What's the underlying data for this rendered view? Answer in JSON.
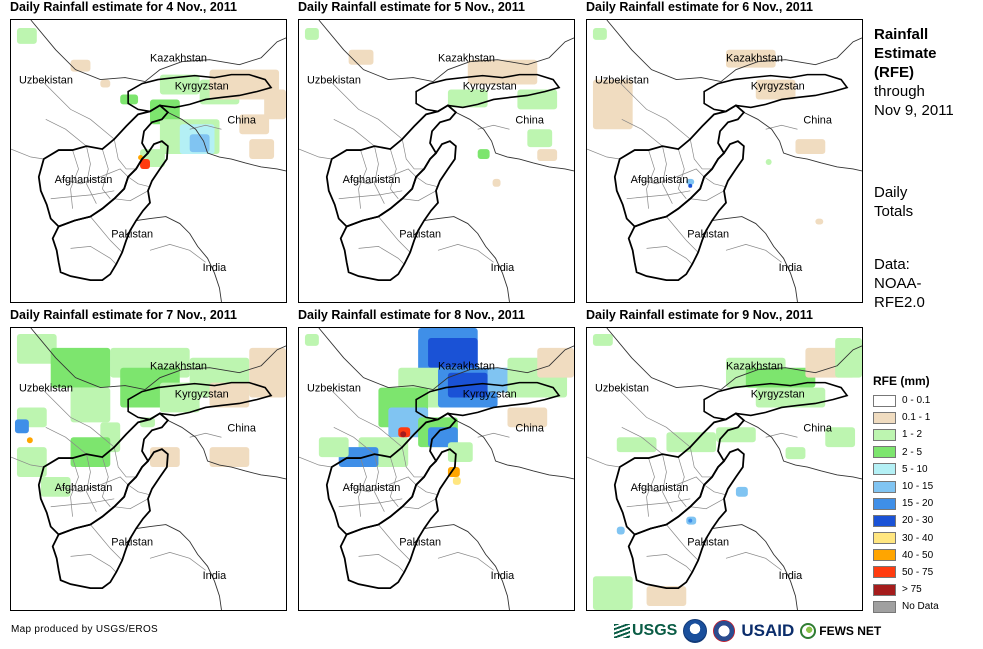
{
  "panels": [
    {
      "title": "Daily Rainfall estimate for 4 Nov., 2011"
    },
    {
      "title": "Daily Rainfall estimate for 5 Nov., 2011"
    },
    {
      "title": "Daily Rainfall estimate for 6 Nov., 2011"
    },
    {
      "title": "Daily Rainfall estimate for 7 Nov., 2011"
    },
    {
      "title": "Daily Rainfall estimate for 8 Nov., 2011"
    },
    {
      "title": "Daily Rainfall estimate for 9 Nov., 2011"
    }
  ],
  "map_labels": {
    "kazakhstan": "Kazakhstan",
    "uzbekistan": "Uzbekistan",
    "kyrgyzstan": "Kyrgyzstan",
    "china": "China",
    "afghanistan": "Afghanistan",
    "pakistan": "Pakistan",
    "india": "India"
  },
  "sidebar": {
    "title_lines": [
      "Rainfall",
      "Estimate",
      "(RFE)"
    ],
    "through_lines": [
      "through",
      "Nov 9, 2011"
    ],
    "daily_lines": [
      "Daily",
      "Totals"
    ],
    "data_lines": [
      "Data:",
      "NOAA-",
      "RFE2.0"
    ]
  },
  "legend": {
    "title": "RFE (mm)",
    "items": [
      {
        "label": "0 - 0.1",
        "color": "#ffffff"
      },
      {
        "label": "0.1 - 1",
        "color": "#f0dcc0"
      },
      {
        "label": "1 - 2",
        "color": "#bdf5b0"
      },
      {
        "label": "2 - 5",
        "color": "#7de56e"
      },
      {
        "label": "5 - 10",
        "color": "#b4f0f5"
      },
      {
        "label": "10 - 15",
        "color": "#80c4f2"
      },
      {
        "label": "15 - 20",
        "color": "#3f8fe8"
      },
      {
        "label": "20 - 30",
        "color": "#1a52d6"
      },
      {
        "label": "30 - 40",
        "color": "#ffe680"
      },
      {
        "label": "40 - 50",
        "color": "#ffa500"
      },
      {
        "label": "50 - 75",
        "color": "#ff3b0f"
      },
      {
        "label": "> 75",
        "color": "#a51c1c"
      },
      {
        "label": "No Data",
        "color": "#a0a0a0"
      }
    ]
  },
  "footer": {
    "credit": "Map produced by USGS/EROS"
  },
  "logos": {
    "usgs": "USGS",
    "usaid": "USAID",
    "fews": "FEWS NET"
  }
}
